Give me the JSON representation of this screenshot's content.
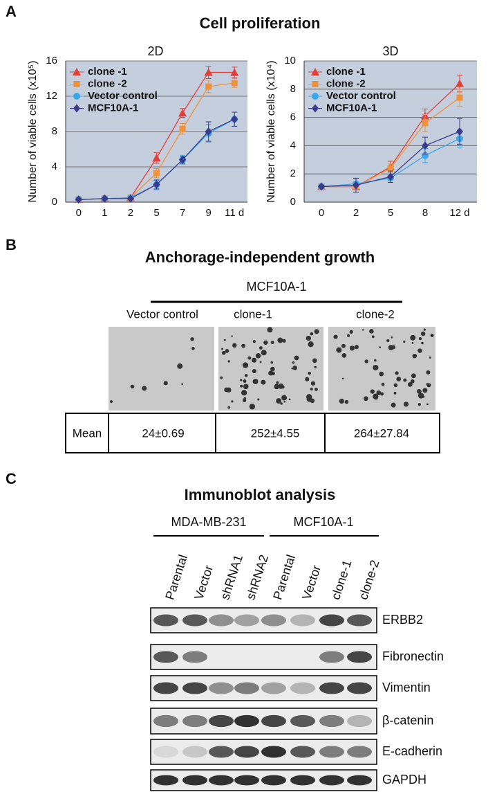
{
  "panel_a": {
    "letter": "A",
    "title": "Cell proliferation"
  },
  "chart_data": [
    {
      "type": "line",
      "title": "2D",
      "ylabel": "Number of viable cells (x10⁵)",
      "categories": [
        "0",
        "1",
        "2",
        "5",
        "7",
        "9",
        "11 d"
      ],
      "ylim": [
        0,
        16
      ],
      "yticks": [
        0,
        4,
        8,
        12,
        16
      ],
      "grid": true,
      "legend": "upper-left",
      "series": [
        {
          "name": "clone -1",
          "color": "#e0403a",
          "marker": "triangle",
          "values": [
            0.3,
            0.4,
            0.5,
            5.0,
            10.1,
            14.7,
            14.7
          ],
          "errors": [
            0.1,
            0.1,
            0.1,
            0.6,
            0.5,
            0.7,
            0.6
          ]
        },
        {
          "name": "clone -2",
          "color": "#f0923a",
          "marker": "square",
          "values": [
            0.3,
            0.4,
            0.5,
            3.3,
            8.3,
            13.1,
            13.5
          ],
          "errors": [
            0.1,
            0.1,
            0.1,
            0.5,
            0.6,
            0.7,
            0.5
          ]
        },
        {
          "name": "Vector control",
          "color": "#3aa8e8",
          "marker": "circle",
          "values": [
            0.3,
            0.4,
            0.5,
            2.0,
            4.8,
            7.8,
            9.4
          ],
          "errors": [
            0.1,
            0.1,
            0.1,
            0.6,
            0.5,
            1.0,
            0.8
          ]
        },
        {
          "name": "MCF10A-1",
          "color": "#3a3a8c",
          "marker": "diamond",
          "values": [
            0.3,
            0.4,
            0.4,
            2.0,
            4.8,
            8.0,
            9.4
          ],
          "errors": [
            0.1,
            0.1,
            0.1,
            0.5,
            0.4,
            1.1,
            0.8
          ]
        }
      ]
    },
    {
      "type": "line",
      "title": "3D",
      "ylabel": "Number of viable cells (x10⁴)",
      "categories": [
        "0",
        "2",
        "5",
        "8",
        "12 d"
      ],
      "ylim": [
        0,
        10
      ],
      "yticks": [
        0,
        2,
        4,
        6,
        8,
        10
      ],
      "grid": true,
      "legend": "upper-left",
      "series": [
        {
          "name": "clone -1",
          "color": "#e0403a",
          "marker": "triangle",
          "values": [
            1.1,
            1.1,
            2.5,
            6.1,
            8.4
          ],
          "errors": [
            0.1,
            0.2,
            0.4,
            0.5,
            0.6
          ]
        },
        {
          "name": "clone -2",
          "color": "#f0923a",
          "marker": "square",
          "values": [
            1.1,
            1.1,
            2.4,
            5.6,
            7.4
          ],
          "errors": [
            0.1,
            0.2,
            0.3,
            0.6,
            0.6
          ]
        },
        {
          "name": "Vector control",
          "color": "#3aa8e8",
          "marker": "circle",
          "values": [
            1.1,
            1.3,
            1.7,
            3.3,
            4.5
          ],
          "errors": [
            0.1,
            0.4,
            0.3,
            0.5,
            0.6
          ]
        },
        {
          "name": "MCF10A-1",
          "color": "#3a3a8c",
          "marker": "diamond",
          "values": [
            1.1,
            1.2,
            1.8,
            4.0,
            5.0
          ],
          "errors": [
            0.1,
            0.5,
            0.4,
            0.6,
            0.9
          ]
        }
      ]
    }
  ],
  "panel_b": {
    "letter": "B",
    "title": "Anchorage-independent growth",
    "group": "MCF10A-1",
    "columns": [
      "Vector control",
      "clone-1",
      "clone-2"
    ],
    "table": {
      "row_label": "Mean",
      "values": [
        "24±0.69",
        "252±4.55",
        "264±27.84"
      ]
    }
  },
  "panel_c": {
    "letter": "C",
    "title": "Immunoblot analysis",
    "groups": [
      "MDA-MB-231",
      "MCF10A-1"
    ],
    "lanes": [
      "Parental",
      "Vector",
      "shRNA1",
      "shRNA2",
      "Parental",
      "Vector",
      "clone-1",
      "clone-2"
    ],
    "proteins": [
      "ERBB2",
      "Fibronectin",
      "Vimentin",
      "β-catenin",
      "E-cadherin",
      "GAPDH"
    ]
  }
}
